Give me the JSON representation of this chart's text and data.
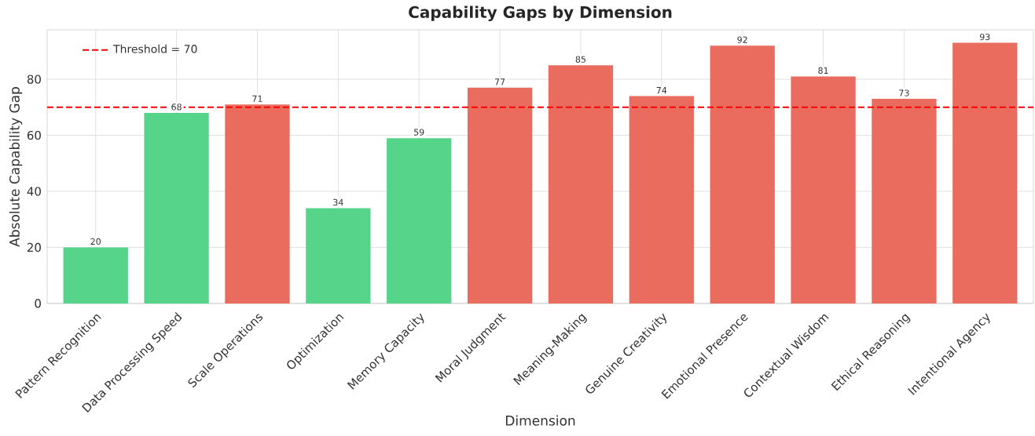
{
  "chart_data": {
    "type": "bar",
    "title": "Capability Gaps by Dimension",
    "xlabel": "Dimension",
    "ylabel": "Absolute Capability Gap",
    "categories": [
      "Pattern Recognition",
      "Data Processing Speed",
      "Scale Operations",
      "Optimization",
      "Memory Capacity",
      "Moral Judgment",
      "Meaning-Making",
      "Genuine Creativity",
      "Emotional Presence",
      "Contextual Wisdom",
      "Ethical Reasoning",
      "Intentional Agency"
    ],
    "values": [
      20,
      68,
      71,
      34,
      59,
      77,
      85,
      74,
      92,
      81,
      73,
      93
    ],
    "colors": [
      "#55d48a",
      "#55d48a",
      "#e96c5f",
      "#55d48a",
      "#55d48a",
      "#e96c5f",
      "#e96c5f",
      "#e96c5f",
      "#e96c5f",
      "#e96c5f",
      "#e96c5f",
      "#e96c5f"
    ],
    "ylim": [
      0,
      97.65
    ],
    "yticks": [
      0,
      20,
      40,
      60,
      80
    ],
    "ref_lines": [
      {
        "axis": "y",
        "value": 70,
        "label": "Threshold = 70",
        "color": "#ff0000",
        "line_style": "dashed"
      }
    ],
    "data_labels": true,
    "grid": true,
    "legend": "top left"
  }
}
